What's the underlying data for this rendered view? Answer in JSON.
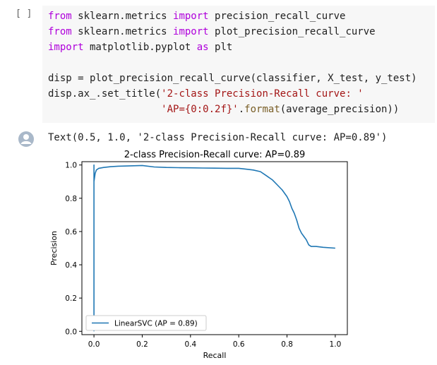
{
  "code_cell": {
    "run_indicator": "[ ]",
    "lines": [
      [
        {
          "t": "kw",
          "v": "from"
        },
        {
          "t": "plain",
          "v": " sklearn.metrics "
        },
        {
          "t": "kw",
          "v": "import"
        },
        {
          "t": "plain",
          "v": " precision_recall_curve"
        }
      ],
      [
        {
          "t": "kw",
          "v": "from"
        },
        {
          "t": "plain",
          "v": " sklearn.metrics "
        },
        {
          "t": "kw",
          "v": "import"
        },
        {
          "t": "plain",
          "v": " plot_precision_recall_curve"
        }
      ],
      [
        {
          "t": "kw",
          "v": "import"
        },
        {
          "t": "plain",
          "v": " matplotlib.pyplot "
        },
        {
          "t": "kw",
          "v": "as"
        },
        {
          "t": "plain",
          "v": " plt"
        }
      ],
      [],
      [
        {
          "t": "plain",
          "v": "disp = plot_precision_recall_curve(classifier, X_test, y_test)"
        }
      ],
      [
        {
          "t": "plain",
          "v": "disp.ax_.set_title("
        },
        {
          "t": "str",
          "v": "'2-class Precision-Recall curve: '"
        }
      ],
      [
        {
          "t": "plain",
          "v": "                   "
        },
        {
          "t": "str",
          "v": "'AP={0:0.2f}'"
        },
        {
          "t": "plain",
          "v": "."
        },
        {
          "t": "fn",
          "v": "format"
        },
        {
          "t": "plain",
          "v": "(average_precision))"
        }
      ]
    ]
  },
  "output": {
    "text": "Text(0.5, 1.0, '2-class Precision-Recall curve: AP=0.89')"
  },
  "chart_data": {
    "type": "line",
    "title": "2-class Precision-Recall curve: AP=0.89",
    "xlabel": "Recall",
    "ylabel": "Precision",
    "xlim": [
      -0.05,
      1.05
    ],
    "ylim": [
      -0.02,
      1.02
    ],
    "xticks": [
      "0.0",
      "0.2",
      "0.4",
      "0.6",
      "0.8",
      "1.0"
    ],
    "yticks": [
      "0.0",
      "0.2",
      "0.4",
      "0.6",
      "0.8",
      "1.0"
    ],
    "grid": false,
    "legend_position": "lower-left",
    "series": [
      {
        "name": "LinearSVC (AP = 0.89)",
        "color": "#1f77b4",
        "x": [
          0.0,
          0.0,
          0.0,
          0.005,
          0.01,
          0.02,
          0.04,
          0.07,
          0.1,
          0.15,
          0.2,
          0.25,
          0.3,
          0.35,
          0.4,
          0.45,
          0.5,
          0.55,
          0.6,
          0.63,
          0.66,
          0.69,
          0.71,
          0.74,
          0.76,
          0.78,
          0.8,
          0.81,
          0.82,
          0.83,
          0.84,
          0.85,
          0.86,
          0.87,
          0.88,
          0.89,
          0.9,
          0.92,
          0.95,
          1.0
        ],
        "y": [
          0.0,
          1.0,
          0.9,
          0.95,
          0.97,
          0.98,
          0.985,
          0.99,
          0.993,
          0.995,
          0.997,
          0.988,
          0.985,
          0.984,
          0.983,
          0.982,
          0.981,
          0.98,
          0.98,
          0.975,
          0.97,
          0.96,
          0.94,
          0.91,
          0.88,
          0.85,
          0.81,
          0.78,
          0.74,
          0.71,
          0.67,
          0.62,
          0.59,
          0.57,
          0.55,
          0.52,
          0.51,
          0.51,
          0.505,
          0.5
        ]
      }
    ]
  }
}
